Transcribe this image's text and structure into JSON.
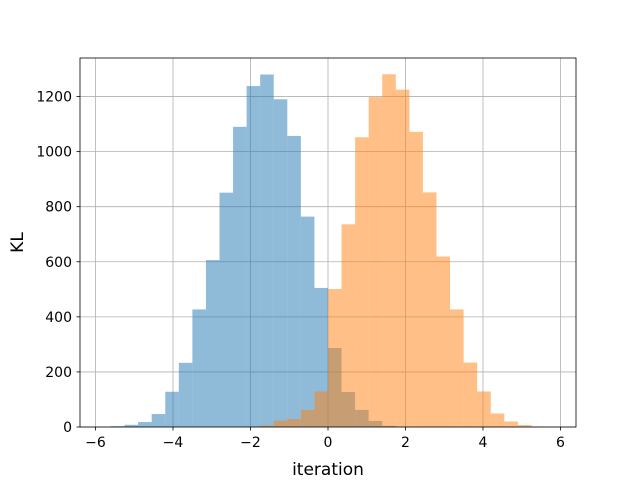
{
  "chart_data": {
    "type": "bar",
    "subtype": "overlapping-histogram",
    "xlabel": "iteration",
    "ylabel": "KL",
    "xlim": [
      -6.4,
      6.4
    ],
    "ylim": [
      0,
      1340
    ],
    "xticks": [
      -6,
      -4,
      -2,
      0,
      2,
      4,
      6
    ],
    "yticks": [
      0,
      200,
      400,
      600,
      800,
      1000,
      1200
    ],
    "grid": true,
    "bin_width": 0.35,
    "series": [
      {
        "color": "#1f77b4",
        "opacity": 0.5,
        "bins_left": [
          -5.6,
          -5.25,
          -4.9,
          -4.55,
          -4.2,
          -3.85,
          -3.5,
          -3.15,
          -2.8,
          -2.45,
          -2.1,
          -1.75,
          -1.4,
          -1.05,
          -0.7,
          -0.35,
          0.0,
          0.35,
          0.7,
          1.05,
          1.4
        ],
        "values": [
          3,
          8,
          18,
          47,
          128,
          233,
          427,
          606,
          851,
          1090,
          1238,
          1280,
          1190,
          1057,
          764,
          505,
          287,
          127,
          62,
          22,
          4
        ]
      },
      {
        "color": "#ff7f0e",
        "opacity": 0.5,
        "bins_left": [
          -1.75,
          -1.4,
          -1.05,
          -0.7,
          -0.35,
          0.0,
          0.35,
          0.7,
          1.05,
          1.4,
          1.75,
          2.1,
          2.45,
          2.8,
          3.15,
          3.5,
          3.85,
          4.2,
          4.55,
          4.9,
          5.25
        ],
        "values": [
          5,
          23,
          29,
          62,
          129,
          501,
          736,
          1052,
          1198,
          1281,
          1225,
          1072,
          852,
          619,
          427,
          234,
          129,
          49,
          20,
          7,
          2
        ]
      }
    ]
  }
}
